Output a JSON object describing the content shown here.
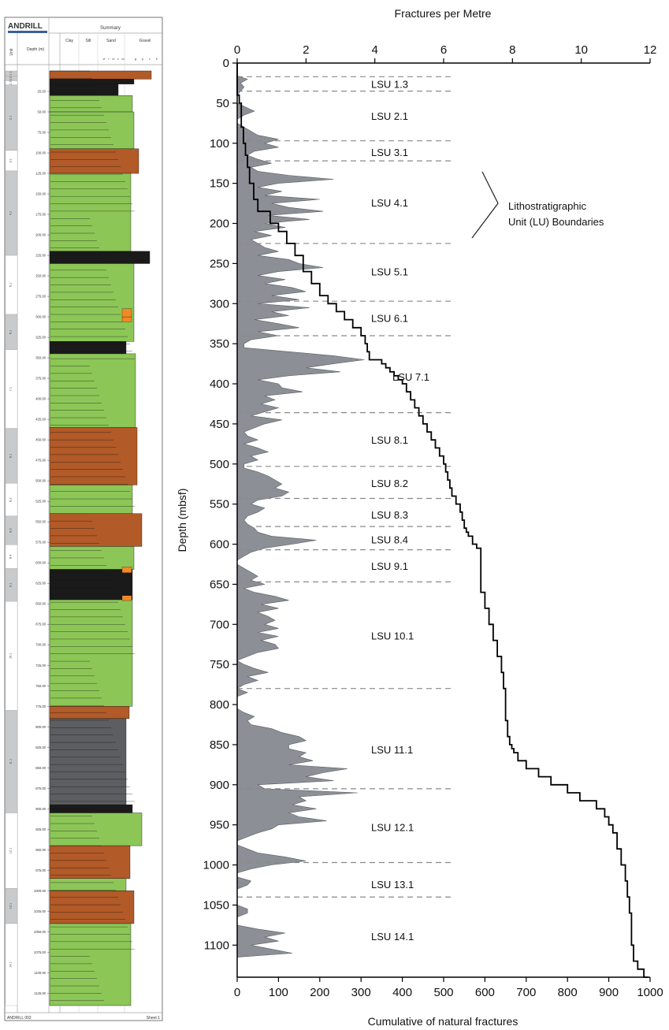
{
  "core_log": {
    "brand": "ANDRILL",
    "header_title": "Summary",
    "columns": [
      "Unit",
      "Depth (m)"
    ],
    "grain_classes": [
      "Clay",
      "Silt",
      "Sand",
      "Gravel"
    ],
    "sand_subclasses": [
      "vf",
      "f",
      "m",
      "c",
      "vc"
    ],
    "gravel_subclasses": [
      "g",
      "p",
      "c",
      "b"
    ],
    "footer_left": "ANDRILL 002",
    "footer_right": "Sheet 1",
    "depth_labels": [
      "25.00",
      "50.00",
      "75.00",
      "100.00",
      "125.00",
      "150.00",
      "175.00",
      "200.00",
      "225.00",
      "250.00",
      "275.00",
      "300.00",
      "325.00",
      "350.00",
      "375.00",
      "400.00",
      "425.00",
      "450.00",
      "475.00",
      "500.00",
      "525.00",
      "550.00",
      "575.00",
      "600.00",
      "625.00",
      "650.00",
      "675.00",
      "700.00",
      "725.00",
      "750.00",
      "775.00",
      "800.00",
      "825.00",
      "850.00",
      "875.00",
      "900.00",
      "925.00",
      "950.00",
      "975.00",
      "1000.00",
      "1025.00",
      "1050.00",
      "1075.00",
      "1100.00",
      "1125.00"
    ],
    "unit_labels": [
      "1.1",
      "1.2",
      "1.3",
      "2.1",
      "3.1",
      "4.1",
      "5.1",
      "6.1",
      "7.1",
      "8.1",
      "8.2",
      "8.3",
      "8.4",
      "9.1",
      "10.1",
      "11.1",
      "12.1",
      "13.1",
      "14.1"
    ]
  },
  "chart_data": {
    "type": "area",
    "top_axis": {
      "label": "Fractures per Metre",
      "range": [
        0,
        12
      ],
      "ticks": [
        0,
        2,
        4,
        6,
        8,
        10,
        12
      ]
    },
    "bottom_axis": {
      "label": "Cumulative of natural fractures",
      "range": [
        0,
        1000
      ],
      "ticks": [
        0,
        100,
        200,
        300,
        400,
        500,
        600,
        700,
        800,
        900,
        1000
      ]
    },
    "y_axis": {
      "label": "Depth (mbsf)",
      "range": [
        0,
        1140
      ],
      "inverted": true,
      "ticks": [
        0,
        50,
        100,
        150,
        200,
        250,
        300,
        350,
        400,
        450,
        500,
        550,
        600,
        650,
        700,
        750,
        800,
        850,
        900,
        950,
        1000,
        1050,
        1100
      ]
    },
    "series": [
      {
        "type": "area",
        "axis": "top",
        "color": "#8c8f95",
        "depth": [
          0,
          16,
          20,
          25,
          30,
          35,
          40,
          50,
          60,
          65,
          70,
          75,
          80,
          90,
          95,
          100,
          105,
          110,
          115,
          120,
          125,
          130,
          135,
          140,
          145,
          150,
          155,
          160,
          165,
          170,
          175,
          180,
          185,
          190,
          195,
          200,
          205,
          210,
          215,
          220,
          225,
          230,
          235,
          240,
          245,
          250,
          255,
          260,
          265,
          270,
          275,
          280,
          285,
          290,
          295,
          300,
          305,
          310,
          315,
          320,
          325,
          330,
          335,
          340,
          345,
          350,
          355,
          360,
          365,
          370,
          375,
          380,
          385,
          390,
          395,
          400,
          405,
          410,
          415,
          420,
          425,
          430,
          435,
          440,
          445,
          450,
          455,
          460,
          465,
          470,
          475,
          480,
          485,
          490,
          495,
          500,
          505,
          510,
          515,
          520,
          525,
          530,
          535,
          540,
          545,
          550,
          555,
          560,
          565,
          570,
          575,
          580,
          585,
          590,
          595,
          600,
          605,
          610,
          615,
          620,
          625,
          630,
          635,
          640,
          645,
          650,
          655,
          660,
          665,
          670,
          675,
          680,
          685,
          690,
          695,
          700,
          705,
          710,
          715,
          720,
          725,
          730,
          735,
          740,
          745,
          750,
          755,
          760,
          765,
          770,
          775,
          780,
          785,
          790,
          795,
          800,
          805,
          810,
          815,
          820,
          825,
          830,
          835,
          840,
          845,
          850,
          855,
          860,
          865,
          870,
          875,
          880,
          885,
          890,
          895,
          900,
          905,
          910,
          915,
          920,
          925,
          930,
          935,
          940,
          945,
          950,
          955,
          960,
          965,
          970,
          975,
          980,
          985,
          990,
          995,
          1000,
          1005,
          1010,
          1015,
          1020,
          1025,
          1030,
          1035,
          1040,
          1045,
          1050,
          1055,
          1060,
          1065,
          1070,
          1075,
          1080,
          1085,
          1090,
          1095,
          1100,
          1105,
          1110,
          1115,
          1120,
          1125,
          1130,
          1135,
          1140
        ],
        "values": [
          0,
          0,
          0.3,
          0.1,
          0.2,
          0.1,
          0,
          0,
          0.5,
          0.2,
          0,
          0,
          0.2,
          0.6,
          1.2,
          0.8,
          1.2,
          0.5,
          0.3,
          0.6,
          1.0,
          0.4,
          0.6,
          1.5,
          2.8,
          1.2,
          0.6,
          1.3,
          0.8,
          2.4,
          1.0,
          1.5,
          2.5,
          0.9,
          2.1,
          0.8,
          1.4,
          0.5,
          1.0,
          0.4,
          0.6,
          0.8,
          1.2,
          0.6,
          1.5,
          1.8,
          2.5,
          1.2,
          0.6,
          1.4,
          0.8,
          1.6,
          2.0,
          1.0,
          1.8,
          0.6,
          2.1,
          1.0,
          1.5,
          0.5,
          1.2,
          1.8,
          0.6,
          1.2,
          0.4,
          0.2,
          0.2,
          1.5,
          2.8,
          3.7,
          2.8,
          2.0,
          3.0,
          1.5,
          0.6,
          1.2,
          1.3,
          1.9,
          0.8,
          1.1,
          0.7,
          1.2,
          0.8,
          0.4,
          1.3,
          0.8,
          0.5,
          0.2,
          0.3,
          0.6,
          0.2,
          0.6,
          0.9,
          0.4,
          0.6,
          0.2,
          0.2,
          0.6,
          0.9,
          1.1,
          1.3,
          1.1,
          1.5,
          1.3,
          0.6,
          0.4,
          0.8,
          0.6,
          0.3,
          0.2,
          0.3,
          0.5,
          0.6,
          1.0,
          2.3,
          1.6,
          0.8,
          0.4,
          0.2,
          0.0,
          0.0,
          0.2,
          0.4,
          0.6,
          0.4,
          0.8,
          0.2,
          0.5,
          1.1,
          1.5,
          0.7,
          1.2,
          0.6,
          0.9,
          1.1,
          0.8,
          1.2,
          0.6,
          1.2,
          0.7,
          1.1,
          1.2,
          0.6,
          0.3,
          0.0,
          0.2,
          0.5,
          0.9,
          0.3,
          0.6,
          0.2,
          0.0,
          0.3,
          0.0,
          0.0,
          0.0,
          0.0,
          0.2,
          0.5,
          0.3,
          0.4,
          1.0,
          1.3,
          1.8,
          2.0,
          1.5,
          1.5,
          2.0,
          1.8,
          2.2,
          1.5,
          3.2,
          2.5,
          2.0,
          2.8,
          0.6,
          0.8,
          3.5,
          1.8,
          2.0,
          1.6,
          2.3,
          1.5,
          1.8,
          2.6,
          1.2,
          1.0,
          0.6,
          0.3,
          0.0,
          0.0,
          0.3,
          0.6,
          1.4,
          2.0,
          1.0,
          0.4,
          0.0,
          0.0,
          0.4,
          0.3,
          0.0,
          0.0,
          0.0,
          0.0,
          0.0,
          0.3,
          0.3,
          0.0,
          0.0,
          0.0,
          0.6,
          1.4,
          0.8,
          1.2,
          0.4,
          1.0,
          1.6,
          0
        ]
      },
      {
        "type": "step",
        "axis": "bottom",
        "color": "#000000",
        "depth": [
          0,
          30,
          40,
          50,
          80,
          100,
          115,
          130,
          150,
          170,
          185,
          200,
          210,
          225,
          240,
          260,
          275,
          290,
          300,
          310,
          320,
          330,
          340,
          350,
          360,
          370,
          375,
          380,
          385,
          390,
          395,
          400,
          410,
          420,
          430,
          440,
          450,
          460,
          470,
          480,
          490,
          500,
          510,
          520,
          530,
          540,
          550,
          560,
          570,
          580,
          585,
          590,
          600,
          605,
          650,
          660,
          680,
          700,
          720,
          740,
          760,
          780,
          800,
          820,
          840,
          850,
          855,
          860,
          870,
          880,
          890,
          900,
          910,
          920,
          930,
          940,
          950,
          960,
          980,
          1000,
          1020,
          1040,
          1060,
          1080,
          1100,
          1120,
          1130,
          1140
        ],
        "values": [
          0,
          0,
          5,
          10,
          15,
          20,
          25,
          30,
          40,
          50,
          80,
          100,
          120,
          140,
          160,
          180,
          200,
          220,
          240,
          260,
          280,
          300,
          310,
          315,
          320,
          350,
          360,
          370,
          380,
          390,
          400,
          410,
          420,
          430,
          440,
          450,
          460,
          470,
          480,
          490,
          500,
          505,
          510,
          515,
          520,
          530,
          540,
          545,
          550,
          555,
          560,
          570,
          580,
          590,
          590,
          600,
          610,
          620,
          630,
          640,
          645,
          650,
          650,
          655,
          660,
          665,
          670,
          680,
          700,
          730,
          760,
          800,
          830,
          870,
          890,
          900,
          910,
          920,
          930,
          940,
          945,
          950,
          955,
          955,
          960,
          970,
          985,
          995
        ]
      }
    ],
    "annotations": {
      "unit_labels": [
        {
          "label": "LSU 1.3",
          "depth": 26
        },
        {
          "label": "LSU 2.1",
          "depth": 66
        },
        {
          "label": "LSU 3.1",
          "depth": 111
        },
        {
          "label": "LSU 4.1",
          "depth": 174
        },
        {
          "label": "LSU 5.1",
          "depth": 260
        },
        {
          "label": "LSU 6.1",
          "depth": 318
        },
        {
          "label": "LSU 7.1",
          "depth": 391
        },
        {
          "label": "LSU 8.1",
          "depth": 470
        },
        {
          "label": "LSU 8.2",
          "depth": 524
        },
        {
          "label": "LSU 8.3",
          "depth": 563
        },
        {
          "label": "LSU 8.4",
          "depth": 594
        },
        {
          "label": "LSU 9.1",
          "depth": 627
        },
        {
          "label": "LSU 10.1",
          "depth": 714
        },
        {
          "label": "LSU 11.1",
          "depth": 856
        },
        {
          "label": "LSU 12.1",
          "depth": 953
        },
        {
          "label": "LSU 13.1",
          "depth": 1024
        },
        {
          "label": "LSU 14.1",
          "depth": 1089
        }
      ],
      "boundary_depths": [
        17,
        35,
        97,
        122,
        225,
        297,
        340,
        436,
        503,
        543,
        578,
        607,
        647,
        780,
        905,
        997,
        1040
      ],
      "callout_lines": [
        "Lithostratigraphic",
        "Unit (LU) Boundaries"
      ]
    }
  }
}
